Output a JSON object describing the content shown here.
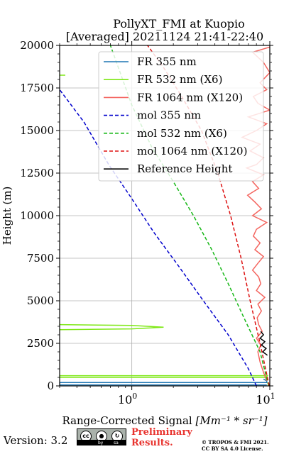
{
  "chart_data": {
    "type": "line",
    "title": "PollyXT_FMI at Kuopio",
    "subtitle": "[Averaged] 20211124 21:41-22:40",
    "xlabel_prefix": "Range-Corrected Signal ",
    "xlabel_unit": "[Mm⁻¹ * sr⁻¹]",
    "ylabel": "Height (m)",
    "xscale": "log",
    "xlim": [
      0.3,
      10
    ],
    "ylim": [
      0,
      20000
    ],
    "xticks": [
      {
        "value": 1,
        "base": "10",
        "exp": "0"
      },
      {
        "value": 10,
        "base": "10",
        "exp": "1"
      }
    ],
    "yticks": [
      "0",
      "2500",
      "5000",
      "7500",
      "10000",
      "12500",
      "15000",
      "17500",
      "20000"
    ],
    "grid": true,
    "legend_position": "top-right",
    "series": [
      {
        "name": "FR 355 nm",
        "color": "#1f77b4",
        "style": "solid",
        "x": [
          9.5,
          0.3,
          0.3,
          9.5,
          9.5,
          9.0
        ],
        "y": [
          60,
          60,
          200,
          200,
          300,
          400
        ]
      },
      {
        "name": "FR 532 nm (X6)",
        "color": "#7fe817",
        "style": "solid",
        "segments": [
          {
            "x": [
              0.3,
              9.6,
              9.4,
              0.3
            ],
            "y": [
              600,
              600,
              500,
              500
            ]
          },
          {
            "x": [
              0.3,
              1.0,
              1.7,
              1.0,
              0.3
            ],
            "y": [
              3600,
              3550,
              3450,
              3350,
              3300
            ]
          },
          {
            "x": [
              0.3,
              0.33
            ],
            "y": [
              18250,
              18250
            ]
          }
        ]
      },
      {
        "name": "FR 1064 nm (X120)",
        "color": "#f4655f",
        "style": "solid",
        "x": [
          9.5,
          9.0,
          8.5,
          8.2,
          8.6,
          8.0,
          8.8,
          8.3,
          8.1,
          8.7,
          8.2,
          9.2,
          8.0,
          8.6,
          8.3,
          7.5,
          8.2,
          9.0,
          7.8,
          8.5,
          7.6,
          8.0,
          9.5,
          7.5,
          8.7,
          7.8,
          6.9,
          8.3,
          7.5,
          9.0,
          6.8,
          8.0,
          9.0,
          7.2,
          8.5,
          6.3,
          8.0,
          9.5,
          7.0,
          10.0,
          8.2,
          7.6,
          9.5,
          8.5,
          10.0,
          9.0,
          7.5,
          10.0
        ],
        "y": [
          300,
          800,
          1400,
          2000,
          2400,
          2800,
          3200,
          3600,
          4000,
          4400,
          4800,
          5200,
          5600,
          6000,
          6400,
          6800,
          7200,
          7600,
          8000,
          8400,
          8800,
          9200,
          9600,
          10000,
          10400,
          10800,
          11200,
          11600,
          12000,
          12400,
          12800,
          13000,
          13400,
          13800,
          14200,
          14600,
          15000,
          15400,
          15800,
          16200,
          16600,
          17000,
          17400,
          17800,
          18400,
          19000,
          19600,
          19900
        ]
      },
      {
        "name": "mol 355 nm",
        "color": "#0000cc",
        "style": "dashed",
        "x": [
          8.0,
          7.0,
          5.0,
          3.3,
          2.2,
          1.45,
          1.0,
          0.68,
          0.45,
          0.3
        ],
        "y": [
          0,
          1000,
          3000,
          5000,
          7000,
          9000,
          11000,
          13000,
          15500,
          17400
        ]
      },
      {
        "name": "mol 532 nm (X6)",
        "color": "#18b818",
        "style": "dashed",
        "x": [
          9.8,
          8.5,
          6.5,
          5.0,
          3.8,
          2.8,
          2.0,
          1.4,
          1.0,
          0.7
        ],
        "y": [
          0,
          2000,
          4000,
          6000,
          8000,
          10000,
          12000,
          14000,
          16500,
          20000
        ]
      },
      {
        "name": "mol 1064 nm (X120)",
        "color": "#dd1111",
        "style": "dashed",
        "x": [
          9.9,
          8.5,
          7.2,
          6.2,
          5.2,
          4.2,
          3.2,
          2.3,
          1.7,
          1.3
        ],
        "y": [
          0,
          2500,
          5000,
          7500,
          10000,
          12500,
          15000,
          17000,
          18700,
          20000
        ]
      },
      {
        "name": "Reference Height",
        "color": "#000000",
        "style": "solid",
        "x": [
          8.6,
          9.0,
          8.5,
          9.2,
          8.7,
          9.4,
          8.9,
          9.6
        ],
        "y": [
          3200,
          3000,
          2800,
          2600,
          2400,
          2200,
          2000,
          1800
        ]
      }
    ]
  },
  "footer": {
    "version": "Version: 3.2",
    "license_badge": [
      "cc",
      "by",
      "sa"
    ],
    "preliminary_line1": "Preliminary",
    "preliminary_line2": "Results.",
    "copyright_line1": "© TROPOS & FMI 2021.",
    "copyright_line2": "CC BY SA 4.0 License."
  }
}
